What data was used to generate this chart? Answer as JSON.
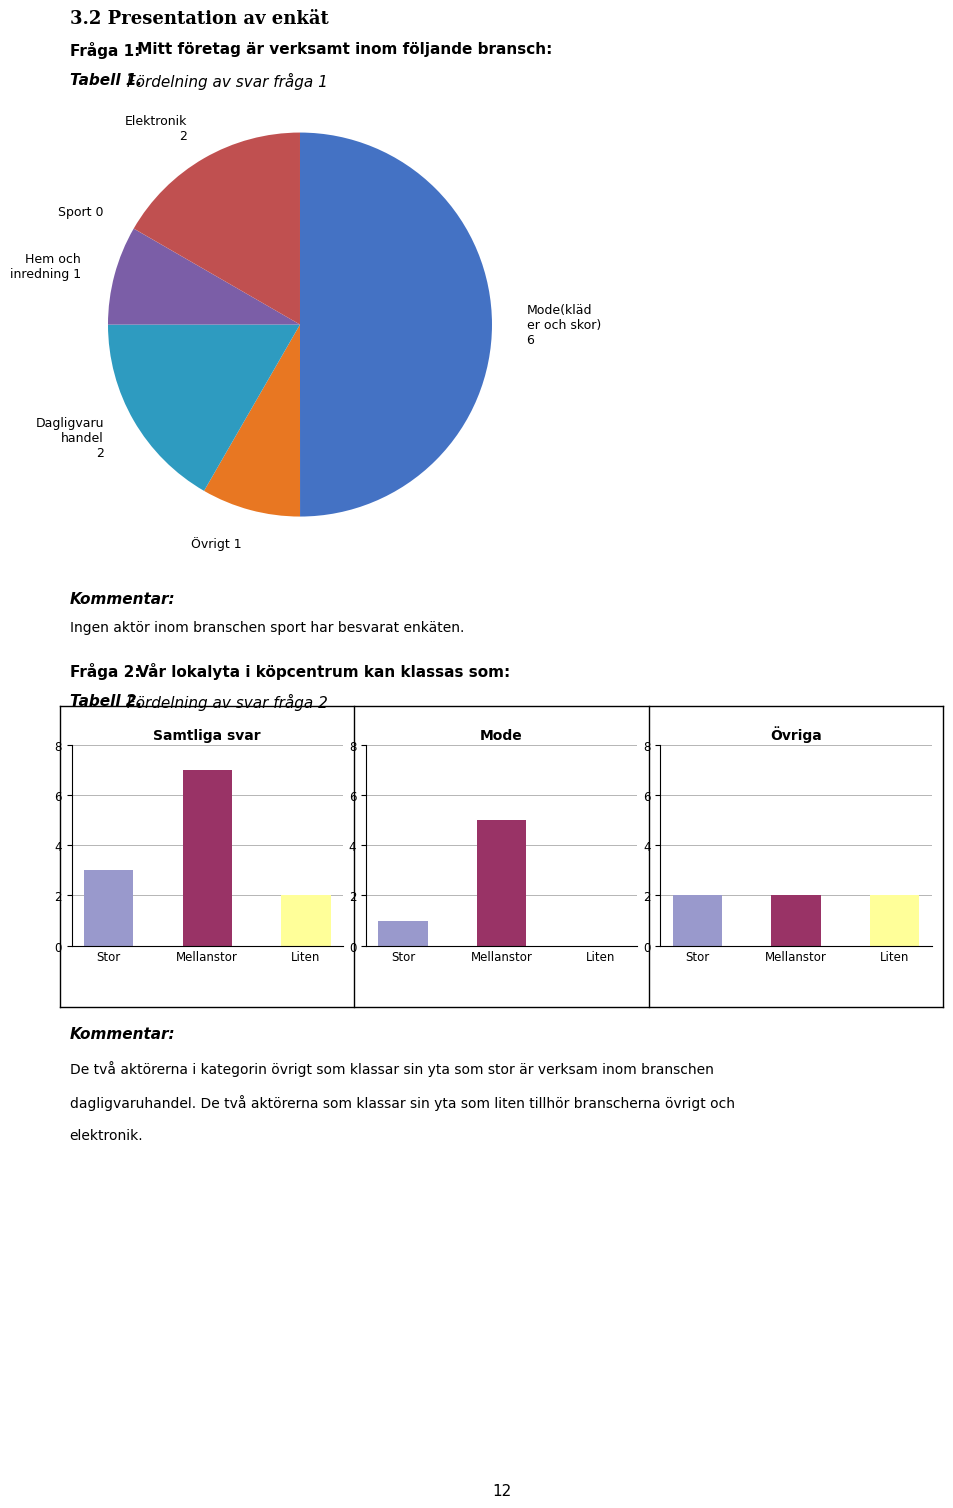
{
  "page_header": "3.2 Presentation av enkät",
  "fraga1_label": "Fråga 1:",
  "fraga1_text": " Mitt företag är verksamt inom följande bransch:",
  "tabell1_bold": "Tabell 1.",
  "tabell1_text": " Fördelning av svar fråga 1",
  "pie_labels": [
    "Mode(kläd\ner och skor)\n6",
    "Övrigt 1",
    "Dagligvaru\nhandel\n2",
    "Hem och\ninredning 1",
    "Sport 0",
    "Elektronik\n2"
  ],
  "pie_values": [
    6,
    1,
    2,
    1,
    0.001,
    2
  ],
  "pie_colors": [
    "#4472C4",
    "#E87722",
    "#2E9BC0",
    "#7B5EA7",
    "#A05050",
    "#C05050"
  ],
  "kommentar1_bold": "Kommentar:",
  "kommentar1_text": "Ingen aktör inom branschen sport har besvarat enkäten.",
  "fraga2_label": "Fråga 2:",
  "fraga2_text": " Vår lokalyta i köpcentrum kan klassas som:",
  "tabell2_bold": "Tabell 2.",
  "tabell2_text": " Fördelning av svar fråga 2",
  "bar_titles": [
    "Samtliga svar",
    "Mode",
    "Övriga"
  ],
  "bar_categories": [
    "Stor",
    "Mellanstor",
    "Liten"
  ],
  "bar_values": [
    [
      3,
      7,
      2
    ],
    [
      1,
      5,
      0
    ],
    [
      2,
      2,
      2
    ]
  ],
  "bar_colors": [
    "#9999CC",
    "#993366",
    "#FFFF99"
  ],
  "bar_ylim": [
    0,
    8
  ],
  "bar_yticks": [
    0,
    2,
    4,
    6,
    8
  ],
  "kommentar2_bold": "Kommentar:",
  "kommentar2_lines": [
    "De två aktörerna i kategorin övrigt som klassar sin yta som stor är verksam inom branschen",
    "dagligvaruhandel. De två aktörerna som klassar sin yta som liten tillhör branscherna övrigt och",
    "elektronik."
  ],
  "page_number": "12",
  "bg_color": "#FFFFFF"
}
